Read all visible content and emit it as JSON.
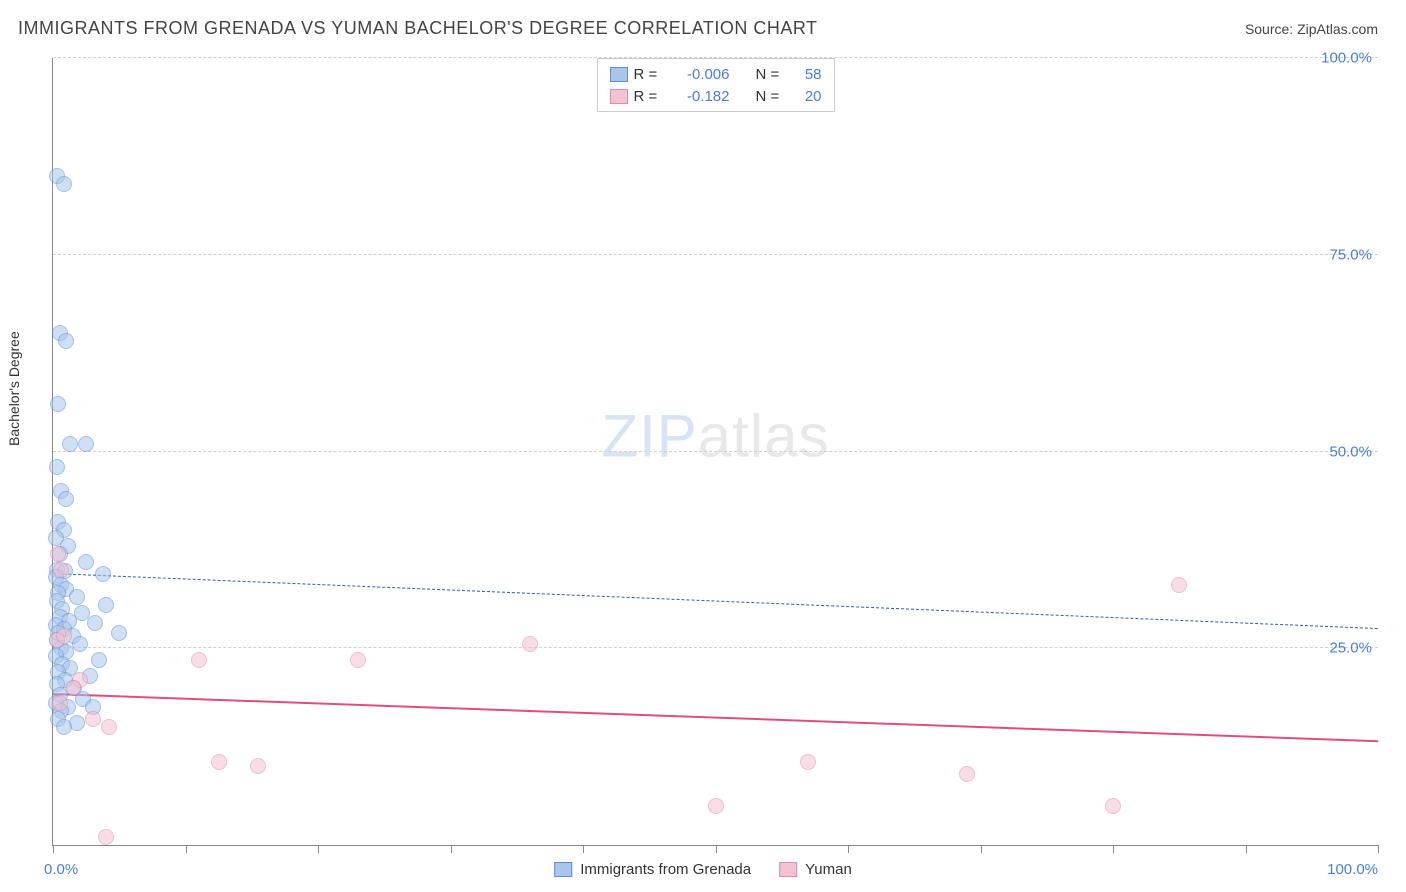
{
  "title": "IMMIGRANTS FROM GRENADA VS YUMAN BACHELOR'S DEGREE CORRELATION CHART",
  "source_label": "Source: ",
  "source_value": "ZipAtlas.com",
  "ylabel": "Bachelor's Degree",
  "watermark_a": "ZIP",
  "watermark_b": "atlas",
  "chart": {
    "type": "scatter",
    "xlim": [
      0,
      100
    ],
    "ylim": [
      0,
      100
    ],
    "x_ticks": [
      0,
      10,
      20,
      30,
      40,
      50,
      60,
      70,
      80,
      90,
      100
    ],
    "y_gridlines": [
      25,
      50,
      75,
      100
    ],
    "y_tick_labels": [
      "25.0%",
      "50.0%",
      "75.0%",
      "100.0%"
    ],
    "x_origin_label": "0.0%",
    "x_max_label": "100.0%",
    "grid_color": "#d6d6d6",
    "axis_color": "#888888",
    "label_color": "#4a7fd8",
    "marker_radius": 8,
    "marker_opacity": 0.55,
    "background_color": "#ffffff"
  },
  "series": [
    {
      "name": "Immigrants from Grenada",
      "color_fill": "#a9c5ec",
      "color_stroke": "#5b8fd6",
      "legend_swatch_fill": "#a9c5ec",
      "legend_swatch_stroke": "#5b8fd6",
      "R_label": "R =",
      "R_value": "-0.006",
      "N_label": "N =",
      "N_value": "58",
      "trend": {
        "y_at_x0": 34.5,
        "y_at_x100": 27.5,
        "dash": "7,6",
        "width": 1.5,
        "color": "#2f5fa8"
      },
      "points": [
        [
          0.3,
          85
        ],
        [
          0.8,
          84
        ],
        [
          0.5,
          65
        ],
        [
          1.0,
          64
        ],
        [
          0.4,
          56
        ],
        [
          1.3,
          51
        ],
        [
          2.5,
          51
        ],
        [
          0.3,
          48
        ],
        [
          0.6,
          45
        ],
        [
          1.0,
          44
        ],
        [
          0.4,
          41
        ],
        [
          0.8,
          40
        ],
        [
          0.2,
          39
        ],
        [
          1.1,
          38
        ],
        [
          0.5,
          37
        ],
        [
          2.5,
          36
        ],
        [
          0.3,
          35
        ],
        [
          0.9,
          34.8
        ],
        [
          3.8,
          34.5
        ],
        [
          0.2,
          34
        ],
        [
          0.6,
          33
        ],
        [
          1.0,
          32.5
        ],
        [
          0.4,
          32
        ],
        [
          1.8,
          31.5
        ],
        [
          0.3,
          31
        ],
        [
          4.0,
          30.5
        ],
        [
          0.7,
          30
        ],
        [
          2.2,
          29.5
        ],
        [
          0.5,
          29
        ],
        [
          1.2,
          28.5
        ],
        [
          0.2,
          28
        ],
        [
          3.2,
          28.2
        ],
        [
          0.8,
          27.5
        ],
        [
          0.4,
          27
        ],
        [
          5.0,
          27
        ],
        [
          1.5,
          26.5
        ],
        [
          0.3,
          26
        ],
        [
          2.0,
          25.5
        ],
        [
          0.6,
          25
        ],
        [
          1.0,
          24.5
        ],
        [
          0.2,
          24
        ],
        [
          3.5,
          23.5
        ],
        [
          0.7,
          23
        ],
        [
          1.3,
          22.5
        ],
        [
          0.4,
          22
        ],
        [
          2.8,
          21.5
        ],
        [
          0.9,
          21
        ],
        [
          0.3,
          20.5
        ],
        [
          1.6,
          20
        ],
        [
          0.5,
          19
        ],
        [
          2.3,
          18.5
        ],
        [
          0.2,
          18
        ],
        [
          1.1,
          17.5
        ],
        [
          0.6,
          17
        ],
        [
          3.0,
          17.5
        ],
        [
          0.4,
          16
        ],
        [
          1.8,
          15.5
        ],
        [
          0.8,
          15
        ]
      ]
    },
    {
      "name": "Yuman",
      "color_fill": "#f3c2d2",
      "color_stroke": "#e28aa8",
      "legend_swatch_fill": "#f3c2d2",
      "legend_swatch_stroke": "#e28aa8",
      "R_label": "R =",
      "R_value": "-0.182",
      "N_label": "N =",
      "N_value": "20",
      "trend": {
        "y_at_x0": 19.0,
        "y_at_x100": 13.0,
        "dash": "none",
        "width": 2.5,
        "color": "#e04e7e"
      },
      "points": [
        [
          0.4,
          37
        ],
        [
          0.6,
          35
        ],
        [
          0.3,
          26
        ],
        [
          0.8,
          26.5
        ],
        [
          2.0,
          21
        ],
        [
          0.5,
          18
        ],
        [
          3.0,
          16
        ],
        [
          4.2,
          15
        ],
        [
          1.5,
          20
        ],
        [
          11,
          23.5
        ],
        [
          23,
          23.5
        ],
        [
          36,
          25.5
        ],
        [
          12.5,
          10.5
        ],
        [
          15.5,
          10
        ],
        [
          57,
          10.5
        ],
        [
          50,
          5
        ],
        [
          69,
          9
        ],
        [
          80,
          5
        ],
        [
          85,
          33
        ],
        [
          4.0,
          1
        ]
      ]
    }
  ],
  "legend_bottom": {
    "items": [
      "Immigrants from Grenada",
      "Yuman"
    ]
  }
}
